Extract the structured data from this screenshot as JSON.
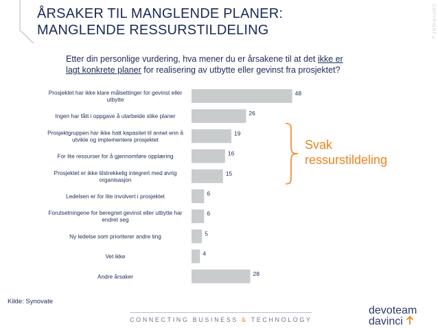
{
  "header": {
    "title_line1": "ÅRSAKER TIL MANGLENDE PLANER:",
    "title_line2": "MANGLENDE RESSURSTILDELING",
    "copyright": "COPYRIGHT ©"
  },
  "question": {
    "part1": "Etter din personlige vurdering, hva mener du er årsakene til at det",
    "underlined": "ikke er lagt konkrete planer",
    "part2": "for realisering av utbytte eller gevinst fra prosjektet?"
  },
  "chart_data": {
    "type": "bar",
    "orientation": "horizontal",
    "categories": [
      "Prosjektet har ikke klare målsettinger for gevinst eller utbytte",
      "Ingen har fått i oppgave å utarbeide slike planer",
      "Prosjektgruppen har ikke hatt kapasitet til annet enn å utvikle og implementere prosjektet",
      "For lite ressurser for å gjennomføre opplæring",
      "Prosjektet er ikke tilstrekkelig integrert med øvrig organisasjon",
      "Ledelsen er for lite involvert i prosjektet",
      "Forutsetningene for beregnet gevinst eller utbytte har endret seg",
      "Ny ledelse som prioriterer andre ting",
      "Vet ikke",
      "Andre årsaker"
    ],
    "label_lines": [
      [
        "Prosjektet har ikke klare målsettinger for gevinst eller",
        "utbytte"
      ],
      [
        "Ingen har fått i oppgave å utarbeide slike planer"
      ],
      [
        "Prosjektgruppen har ikke hatt kapasitet til annet enn å",
        "utvikle og implementere prosjektet"
      ],
      [
        "For lite ressurser for å gjennomføre opplæring"
      ],
      [
        "Prosjektet er ikke tilstrekkelig integrert med øvrig",
        "organisasjon"
      ],
      [
        "Ledelsen er for lite involvert i prosjektet"
      ],
      [
        "Forutsetningene for beregnet gevinst eller utbytte har",
        "endret seg"
      ],
      [
        "Ny ledelse som prioriterer andre ting"
      ],
      [
        "Vet ikke"
      ],
      [
        "Andre årsaker"
      ]
    ],
    "values": [
      48,
      26,
      19,
      16,
      15,
      6,
      6,
      5,
      4,
      28
    ],
    "xlim": [
      0,
      55
    ],
    "grid": false,
    "legend": "none",
    "bar_color": "#c8cccd"
  },
  "callout": {
    "line1": "Svak",
    "line2": "ressurstildeling",
    "color": "#f0821e"
  },
  "source": "Kilde: Synovate",
  "footer": {
    "tagline_a": "CONNECTING BUSINESS",
    "tagline_amp": "&",
    "tagline_b": "TECHNOLOGY",
    "logo_line1": "devoteam",
    "logo_line2": "davinci"
  }
}
